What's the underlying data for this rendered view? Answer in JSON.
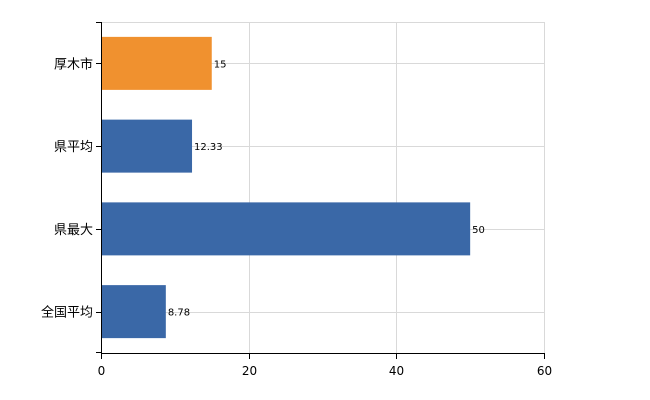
{
  "chart_data": {
    "type": "bar",
    "orientation": "horizontal",
    "categories": [
      "厚木市",
      "県平均",
      "県最大",
      "全国平均"
    ],
    "values": [
      15,
      12.33,
      50,
      8.78
    ],
    "data_labels": [
      "15",
      "12.33",
      "50",
      "8.78"
    ],
    "x_ticks": [
      "0",
      "20",
      "40",
      "60"
    ],
    "xlim": [
      0,
      60
    ],
    "title": "",
    "xlabel": "",
    "ylabel": "",
    "grid": true,
    "legend": "none",
    "colors": {
      "highlight": "#f0912f",
      "default": "#3a68a7"
    },
    "highlight_index": 0
  }
}
